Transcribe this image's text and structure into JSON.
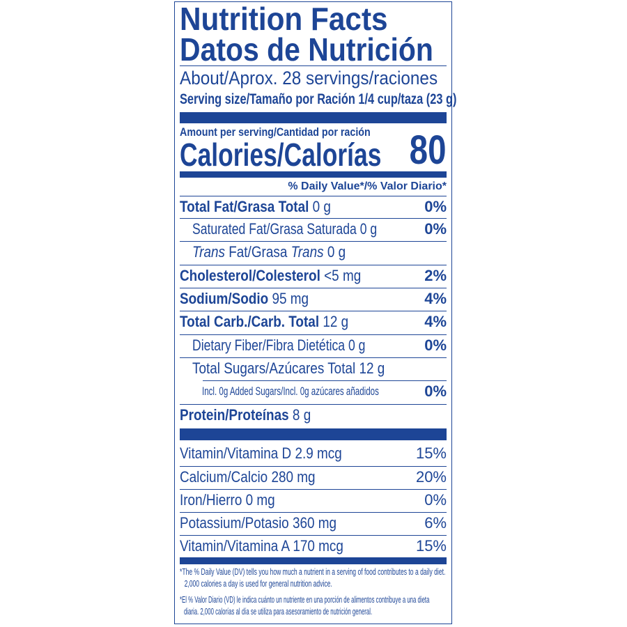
{
  "title_en": "Nutrition Facts",
  "title_es": "Datos de Nutrición",
  "servings": "About/Aprox. 28 servings/raciones",
  "serving_size": "Serving size/Tamaño por Ración 1/4 cup/taza (23 g)",
  "amount_per_serving": "Amount per serving/Cantidad por ración",
  "calories_label": "Calories/Calorías",
  "calories_value": "80",
  "dv_header": "% Daily Value*/% Valor Diario*",
  "nutrients": [
    {
      "name": "Total Fat/Grasa Total",
      "amount": "0 g",
      "dv": "0%"
    },
    {
      "name": "Saturated Fat/Grasa Saturada",
      "amount": "0 g",
      "dv": "0%"
    },
    {
      "name_pre": "Trans",
      "name_mid": " Fat/Grasa ",
      "name_post": "Trans",
      "amount": "0 g"
    },
    {
      "name": "Cholesterol/Colesterol",
      "amount": "<5 mg",
      "dv": "2%"
    },
    {
      "name": "Sodium/Sodio",
      "amount": "95 mg",
      "dv": "4%"
    },
    {
      "name": "Total Carb./Carb. Total",
      "amount": "12 g",
      "dv": "4%"
    },
    {
      "name": "Dietary Fiber/Fibra Dietética",
      "amount": "0 g",
      "dv": "0%"
    },
    {
      "name": "Total Sugars/Azúcares Total",
      "amount": "12 g"
    },
    {
      "name": "Incl. 0g Added Sugars/Incl. 0g azúcares añadidos",
      "dv": "0%"
    },
    {
      "name": "Protein/Proteínas",
      "amount": "8 g"
    }
  ],
  "vitamins": [
    {
      "name": "Vitamin/Vitamina D",
      "amount": "2.9 mcg",
      "dv": "15%"
    },
    {
      "name": "Calcium/Calcio",
      "amount": "280 mg",
      "dv": "20%"
    },
    {
      "name": "Iron/Hierro",
      "amount": "0 mg",
      "dv": "0%"
    },
    {
      "name": "Potassium/Potasio",
      "amount": "360 mg",
      "dv": "6%"
    },
    {
      "name": "Vitamin/Vitamina A",
      "amount": "170 mcg",
      "dv": "15%"
    }
  ],
  "footnote_en": "The % Daily Value (DV) tells you how much a nutrient in a serving of food contributes to a daily diet. 2,000 calories a day is used for general nutrition advice.",
  "footnote_es": "El % Valor Diario (VD) le indica cuánto un nutriente en una porción de alimentos contribuye a una dieta diaria. 2,000 calorías al día se utiliza para asesoramiento de nutrición general.",
  "colors": {
    "ink": "#1d4596",
    "background": "#ffffff"
  }
}
